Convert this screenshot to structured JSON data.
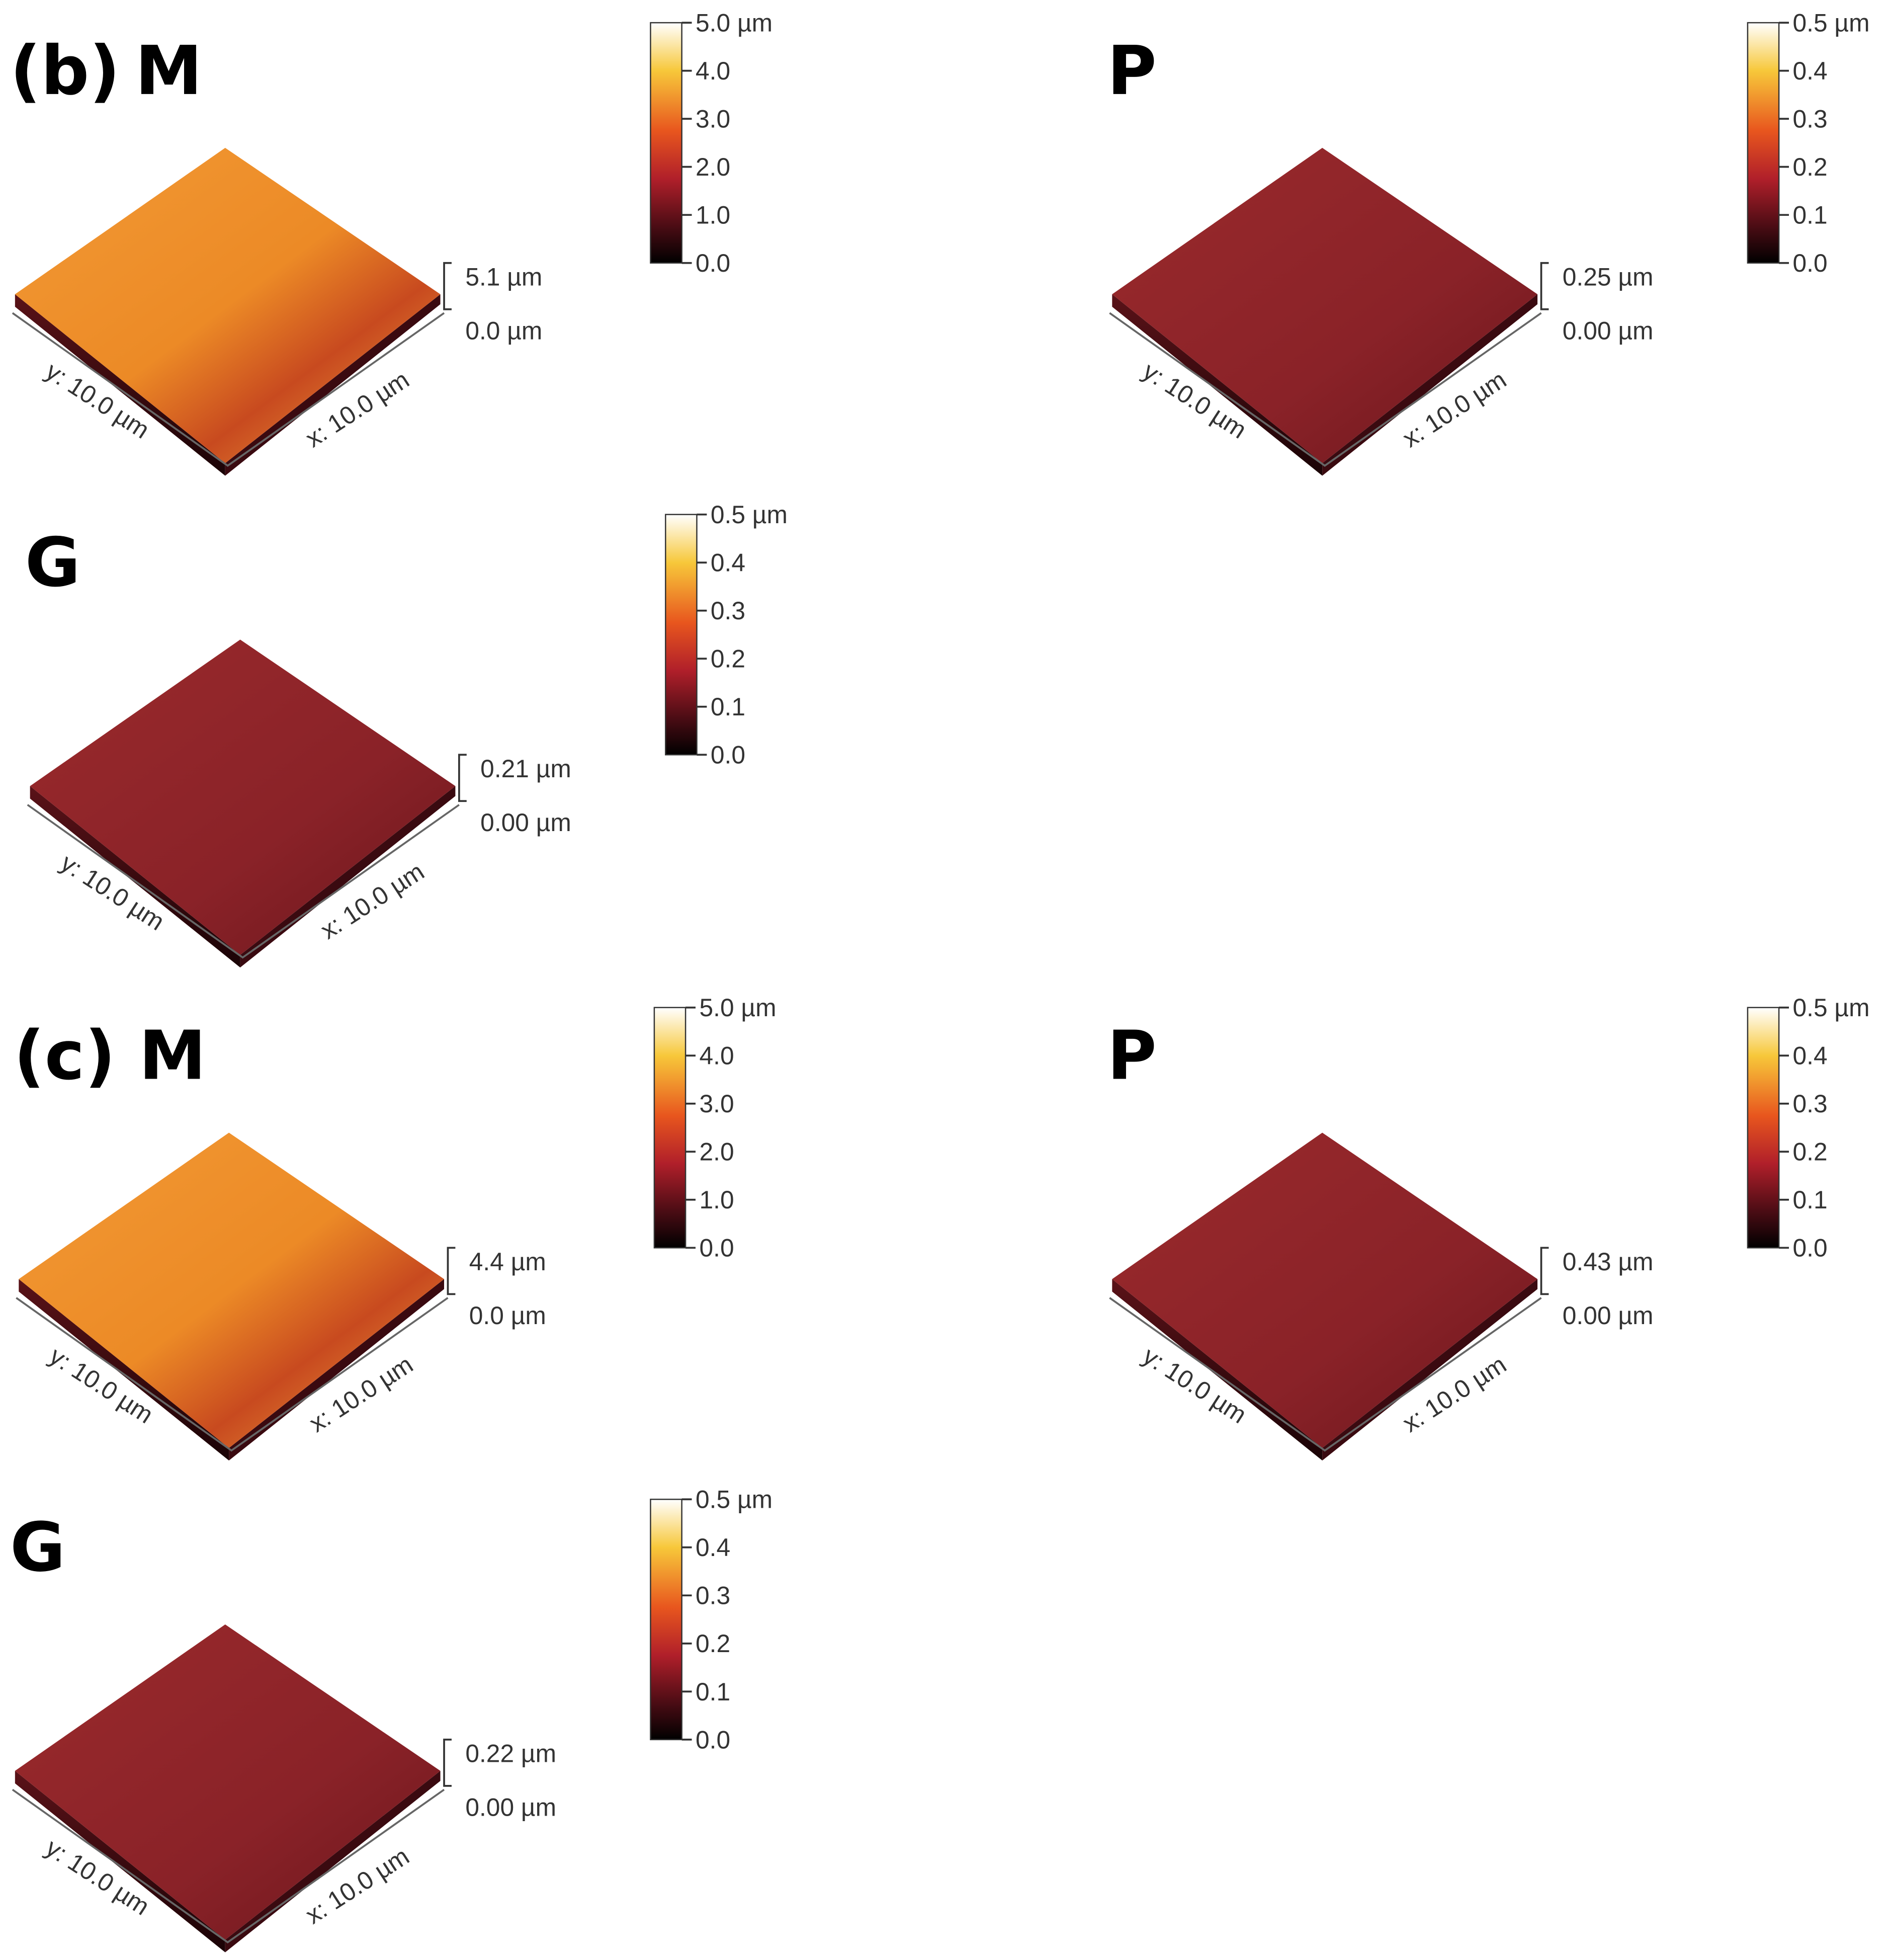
{
  "panels": [
    {
      "label": "(b)",
      "name": "M",
      "colorbar": [
        "5.0 µm",
        "4.0",
        "3.0",
        "2.0",
        "1.0",
        "0.0"
      ],
      "z_max": "5.1 µm",
      "z_min": "0.0 µm",
      "y_axis": "y: 10.0 µm",
      "x_axis": "x: 10.0 µm"
    },
    {
      "name": "P",
      "colorbar": [
        "0.5 µm",
        "0.4",
        "0.3",
        "0.2",
        "0.1",
        "0.0"
      ],
      "z_max": "0.25 µm",
      "z_min": "0.00 µm",
      "y_axis": "y: 10.0 µm",
      "x_axis": "x: 10.0 µm"
    },
    {
      "name": "G",
      "colorbar": [
        "0.5 µm",
        "0.4",
        "0.3",
        "0.2",
        "0.1",
        "0.0"
      ],
      "z_max": "0.21 µm",
      "z_min": "0.00 µm",
      "y_axis": "y: 10.0 µm",
      "x_axis": "x: 10.0 µm"
    },
    {
      "label": "(c)",
      "name": "M",
      "colorbar": [
        "5.0 µm",
        "4.0",
        "3.0",
        "2.0",
        "1.0",
        "0.0"
      ],
      "z_max": "4.4 µm",
      "z_min": "0.0 µm",
      "y_axis": "y: 10.0 µm",
      "x_axis": "x: 10.0 µm"
    },
    {
      "name": "P",
      "colorbar": [
        "0.5 µm",
        "0.4",
        "0.3",
        "0.2",
        "0.1",
        "0.0"
      ],
      "z_max": "0.43 µm",
      "z_min": "0.00 µm",
      "y_axis": "y: 10.0 µm",
      "x_axis": "x: 10.0 µm"
    },
    {
      "name": "G",
      "colorbar": [
        "0.5 µm",
        "0.4",
        "0.3",
        "0.2",
        "0.1",
        "0.0"
      ],
      "z_max": "0.22 µm",
      "z_min": "0.00 µm",
      "y_axis": "y: 10.0 µm",
      "x_axis": "x: 10.0 µm"
    }
  ]
}
